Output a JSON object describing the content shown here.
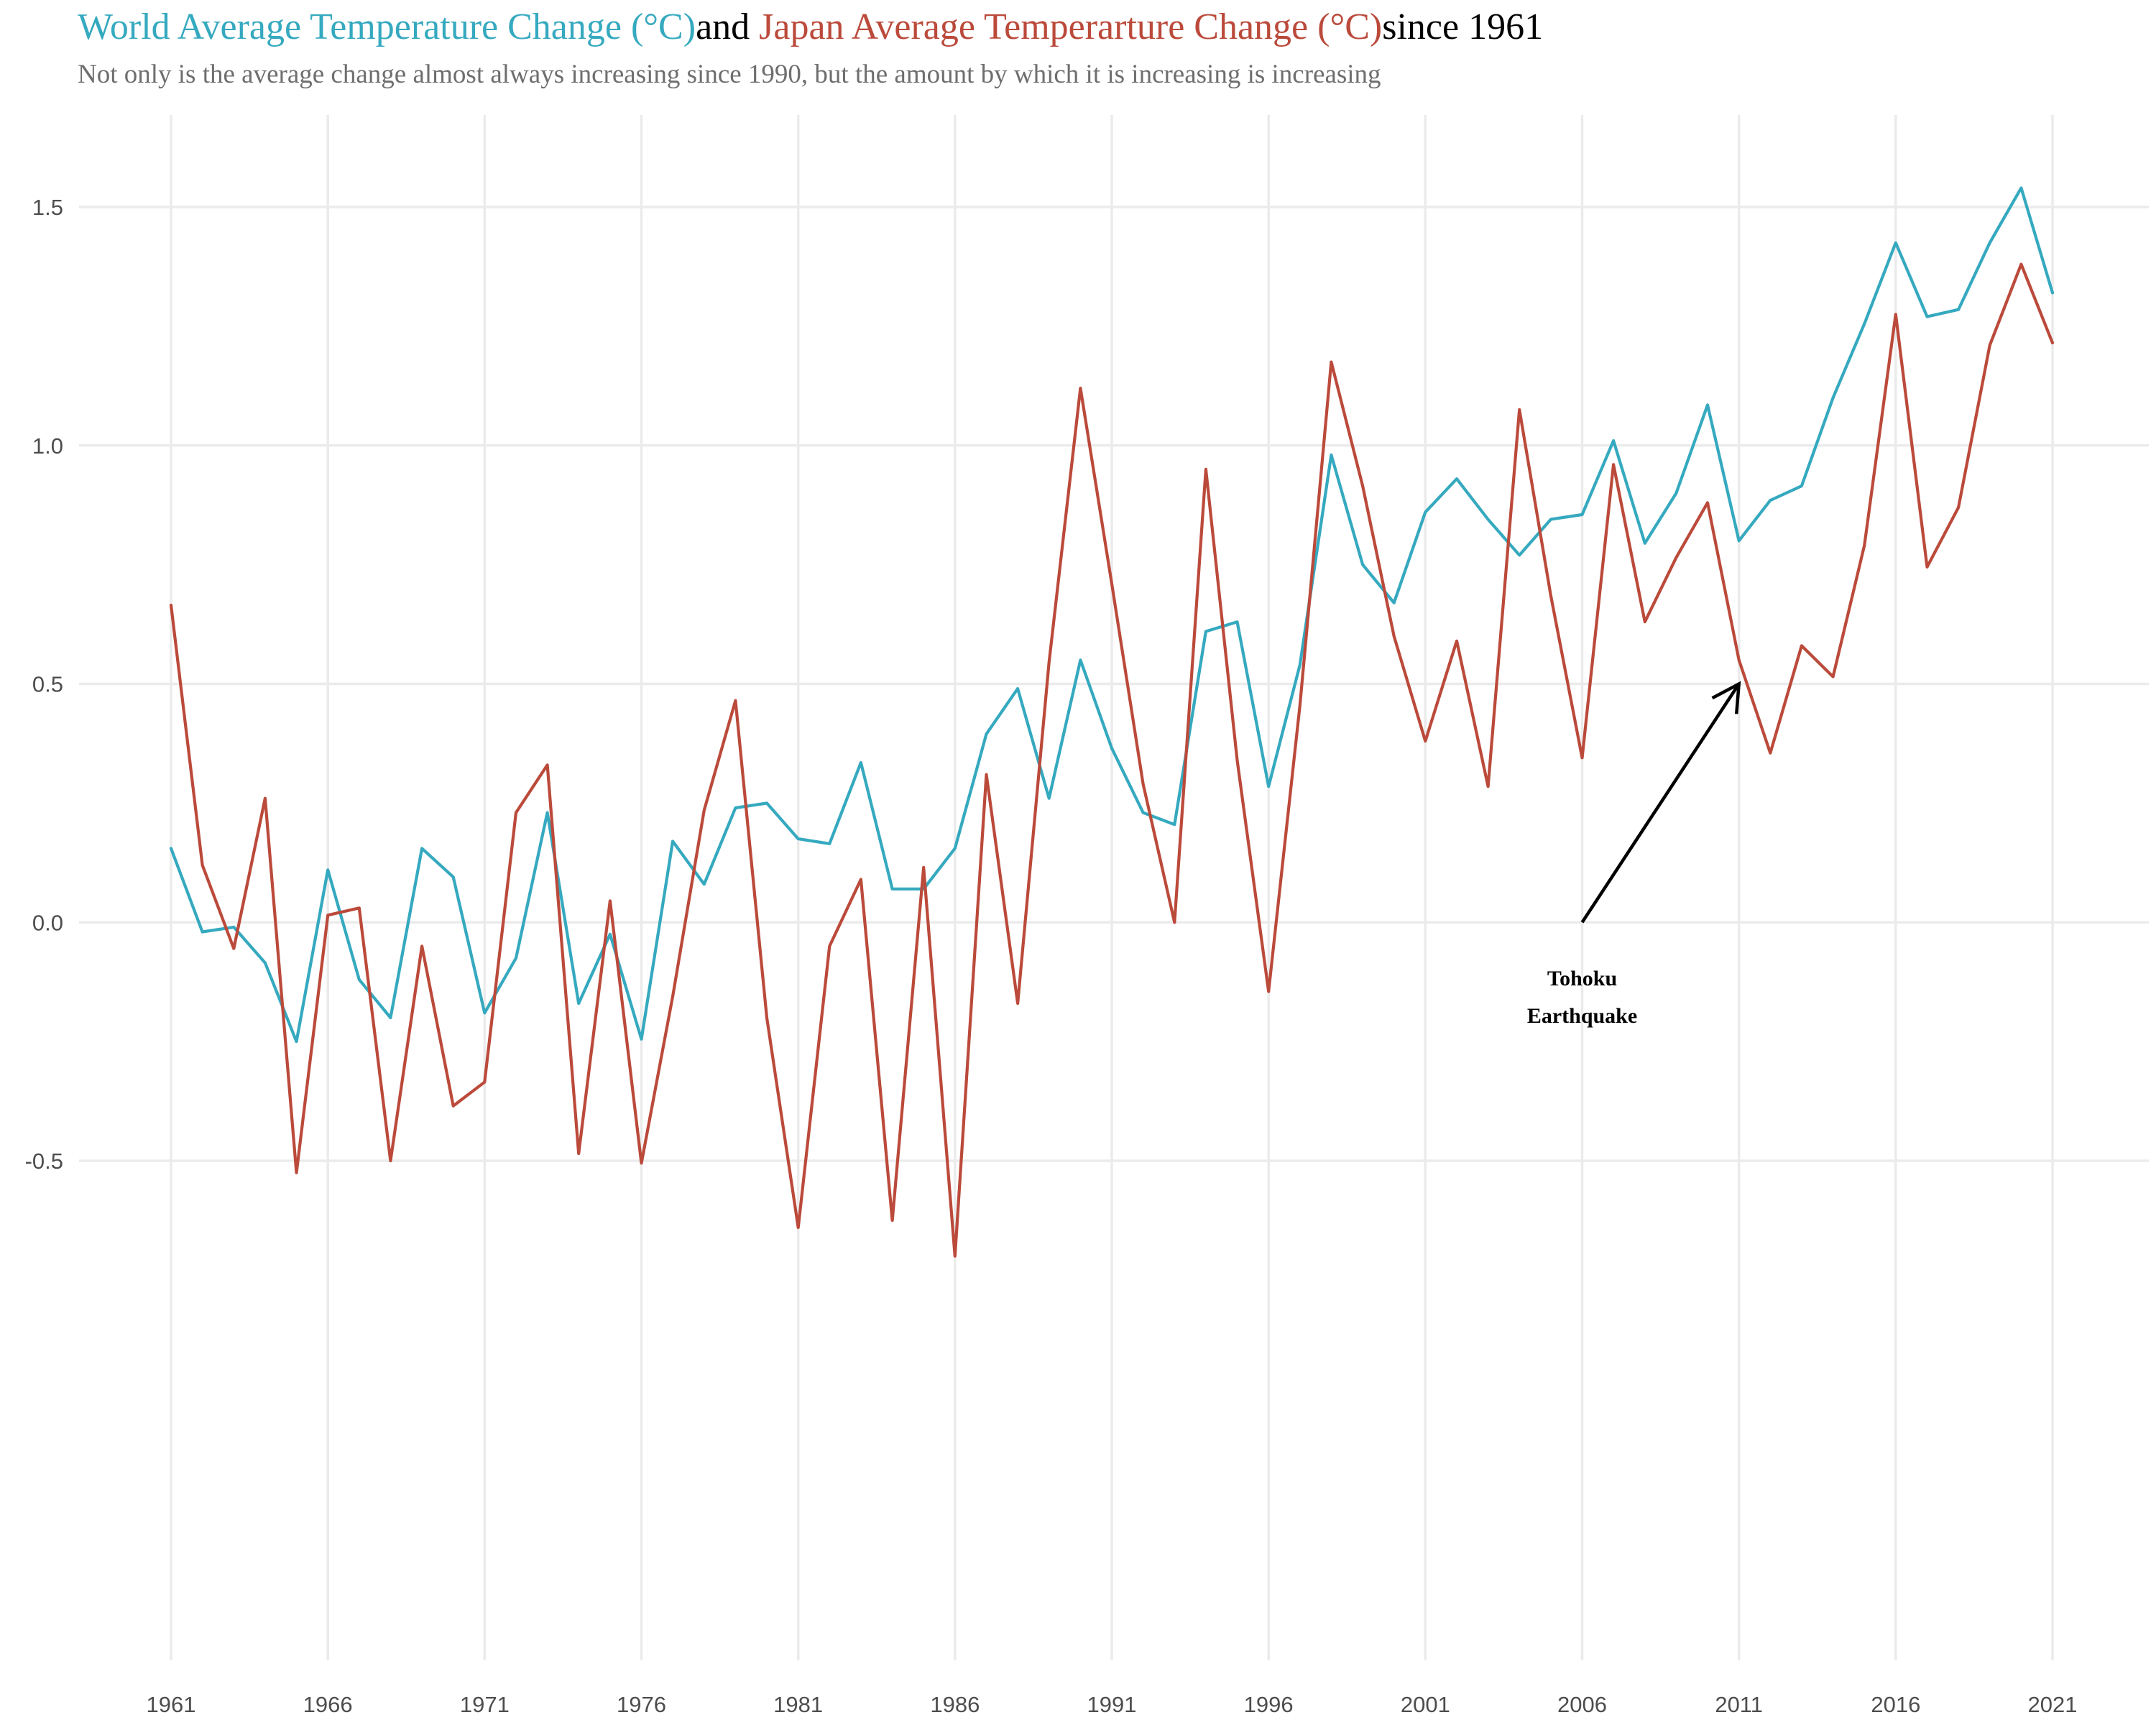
{
  "title": {
    "part1": "World Average Temperature Change (°C)",
    "part2": "and ",
    "part3": "Japan Average Temperarture Change (°C)",
    "part4": "since 1961"
  },
  "subtitle": "Not only is the average change almost always increasing since 1990, but the amount by which it is increasing is increasing",
  "colors": {
    "world": "#35a9bf",
    "japan": "#bb4a3b",
    "grid": "#ebebeb",
    "arrow": "#000000"
  },
  "chart_data": {
    "type": "line",
    "title": "World Average Temperature Change (°C)and Japan Average Temperarture Change (°C)since 1961",
    "xlabel": "",
    "ylabel": "",
    "grid": true,
    "legend": "none",
    "x": [
      1961,
      1962,
      1963,
      1964,
      1965,
      1966,
      1967,
      1968,
      1969,
      1970,
      1971,
      1972,
      1973,
      1974,
      1975,
      1976,
      1977,
      1978,
      1979,
      1980,
      1981,
      1982,
      1983,
      1984,
      1985,
      1986,
      1987,
      1988,
      1989,
      1990,
      1991,
      1992,
      1993,
      1994,
      1995,
      1996,
      1997,
      1998,
      1999,
      2000,
      2001,
      2002,
      2003,
      2004,
      2005,
      2006,
      2007,
      2008,
      2009,
      2010,
      2011,
      2012,
      2013,
      2014,
      2015,
      2016,
      2017,
      2018,
      2019,
      2020,
      2021
    ],
    "xlim": [
      1961,
      2021
    ],
    "ylim": [
      -0.5,
      1.5
    ],
    "x_ticks": [
      "1961",
      "1966",
      "1971",
      "1976",
      "1981",
      "1986",
      "1991",
      "1996",
      "2001",
      "2006",
      "2011",
      "2016",
      "2021"
    ],
    "y_ticks": [
      "-0.5",
      "0.0",
      "0.5",
      "1.0",
      "1.5"
    ],
    "series": [
      {
        "color": "#35a9bf",
        "values": [
          0.155,
          -0.02,
          -0.01,
          -0.085,
          -0.25,
          0.11,
          -0.12,
          -0.2,
          0.155,
          0.095,
          -0.19,
          -0.075,
          0.23,
          -0.17,
          -0.025,
          -0.245,
          0.17,
          0.08,
          0.24,
          0.25,
          0.175,
          0.165,
          0.335,
          0.07,
          0.07,
          0.155,
          0.395,
          0.49,
          0.26,
          0.55,
          0.365,
          0.23,
          0.205,
          0.61,
          0.63,
          0.285,
          0.54,
          0.98,
          0.75,
          0.67,
          0.86,
          0.93,
          0.845,
          0.77,
          0.845,
          0.855,
          1.01,
          0.795,
          0.9,
          1.085,
          0.8,
          0.885,
          0.915,
          1.1,
          1.255,
          1.425,
          1.27,
          1.285,
          1.425,
          1.54,
          1.32
        ]
      },
      {
        "color": "#bb4a3b",
        "values": [
          0.665,
          0.12,
          -0.055,
          0.26,
          -0.525,
          0.015,
          0.03,
          -0.5,
          -0.05,
          -0.385,
          -0.335,
          0.23,
          0.33,
          -0.485,
          0.045,
          -0.505,
          -0.155,
          0.235,
          0.465,
          -0.2,
          -0.64,
          -0.05,
          0.09,
          -0.625,
          0.115,
          -0.7,
          0.31,
          -0.17,
          0.545,
          1.12,
          0.71,
          0.29,
          0.0,
          0.95,
          0.34,
          -0.145,
          0.455,
          1.175,
          0.915,
          0.6,
          0.38,
          0.59,
          0.285,
          1.075,
          0.685,
          0.345,
          0.96,
          0.63,
          0.765,
          0.88,
          0.55,
          0.355,
          0.58,
          0.515,
          0.79,
          1.275,
          0.745,
          0.87,
          1.21,
          1.38,
          1.215
        ]
      }
    ],
    "annotations": [
      {
        "text_lines": [
          "Tohoku",
          "Earthquake"
        ],
        "x": 2006,
        "y": -0.15,
        "arrow_from": [
          2006,
          0.0
        ],
        "arrow_to": [
          2011,
          0.5
        ]
      }
    ]
  }
}
